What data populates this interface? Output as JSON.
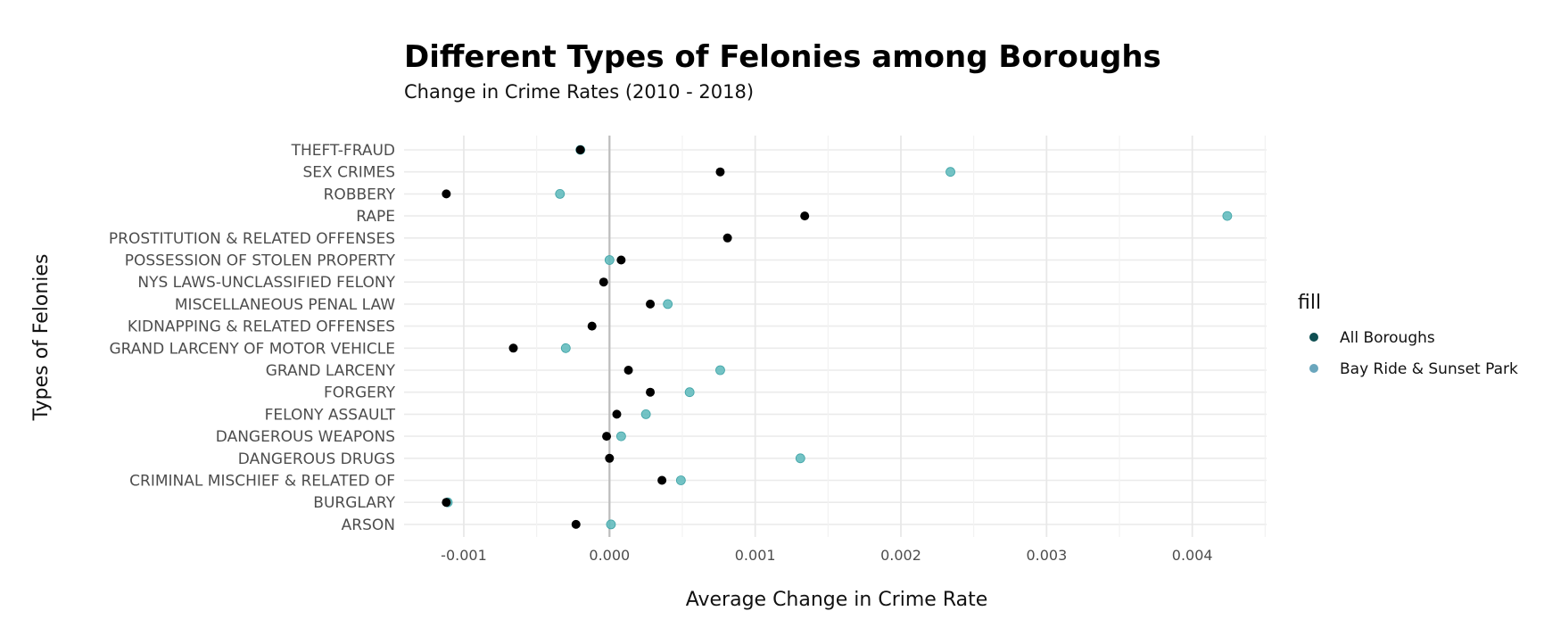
{
  "chart_data": {
    "type": "scatter",
    "title": "Different Types of Felonies among Boroughs",
    "subtitle": "Change in Crime Rates (2010 - 2018)",
    "xlabel": "Average Change in Crime Rate",
    "ylabel": "Types of Felonies",
    "xlim": [
      -0.00141,
      0.00451
    ],
    "x_ticks": [
      -0.001,
      0.0,
      0.001,
      0.002,
      0.003,
      0.004
    ],
    "x_tick_labels": [
      "-0.001",
      "0.000",
      "0.001",
      "0.002",
      "0.003",
      "0.004"
    ],
    "x_minor_ticks": [
      -0.0005,
      0.0005,
      0.0015,
      0.0025,
      0.0035,
      0.0045
    ],
    "categories": [
      "THEFT-FRAUD",
      "SEX CRIMES",
      "ROBBERY",
      "RAPE",
      "PROSTITUTION & RELATED OFFENSES",
      "POSSESSION OF STOLEN PROPERTY",
      "NYS LAWS-UNCLASSIFIED FELONY",
      "MISCELLANEOUS PENAL LAW",
      "KIDNAPPING & RELATED OFFENSES",
      "GRAND LARCENY OF MOTOR VEHICLE",
      "GRAND LARCENY",
      "FORGERY",
      "FELONY ASSAULT",
      "DANGEROUS WEAPONS",
      "DANGEROUS DRUGS",
      "CRIMINAL MISCHIEF & RELATED OF",
      "BURGLARY",
      "ARSON"
    ],
    "series": [
      {
        "name": "All Boroughs",
        "color": "#000000",
        "values": [
          -0.0002,
          0.00076,
          -0.00112,
          0.00134,
          0.00081,
          8e-05,
          -4e-05,
          0.00028,
          -0.00012,
          -0.00066,
          0.00013,
          0.00028,
          5e-05,
          -2e-05,
          0.0,
          0.00036,
          -0.00112,
          -0.00023
        ]
      },
      {
        "name": "Bay Ride & Sunset Park",
        "color": "#5bb8bb",
        "values": [
          -0.0002,
          0.00234,
          -0.00034,
          0.00424,
          null,
          0.0,
          null,
          0.0004,
          null,
          -0.0003,
          0.00076,
          0.00055,
          0.00025,
          8e-05,
          0.00131,
          0.00049,
          -0.00111,
          1e-05
        ]
      }
    ],
    "zero_line": 0.0,
    "grid": true,
    "legend": {
      "title": "fill",
      "position": "right",
      "entries": [
        {
          "label": "All Boroughs",
          "color": "#0f4f52"
        },
        {
          "label": "Bay Ride & Sunset Park",
          "color": "#6aa6bd"
        }
      ]
    }
  }
}
